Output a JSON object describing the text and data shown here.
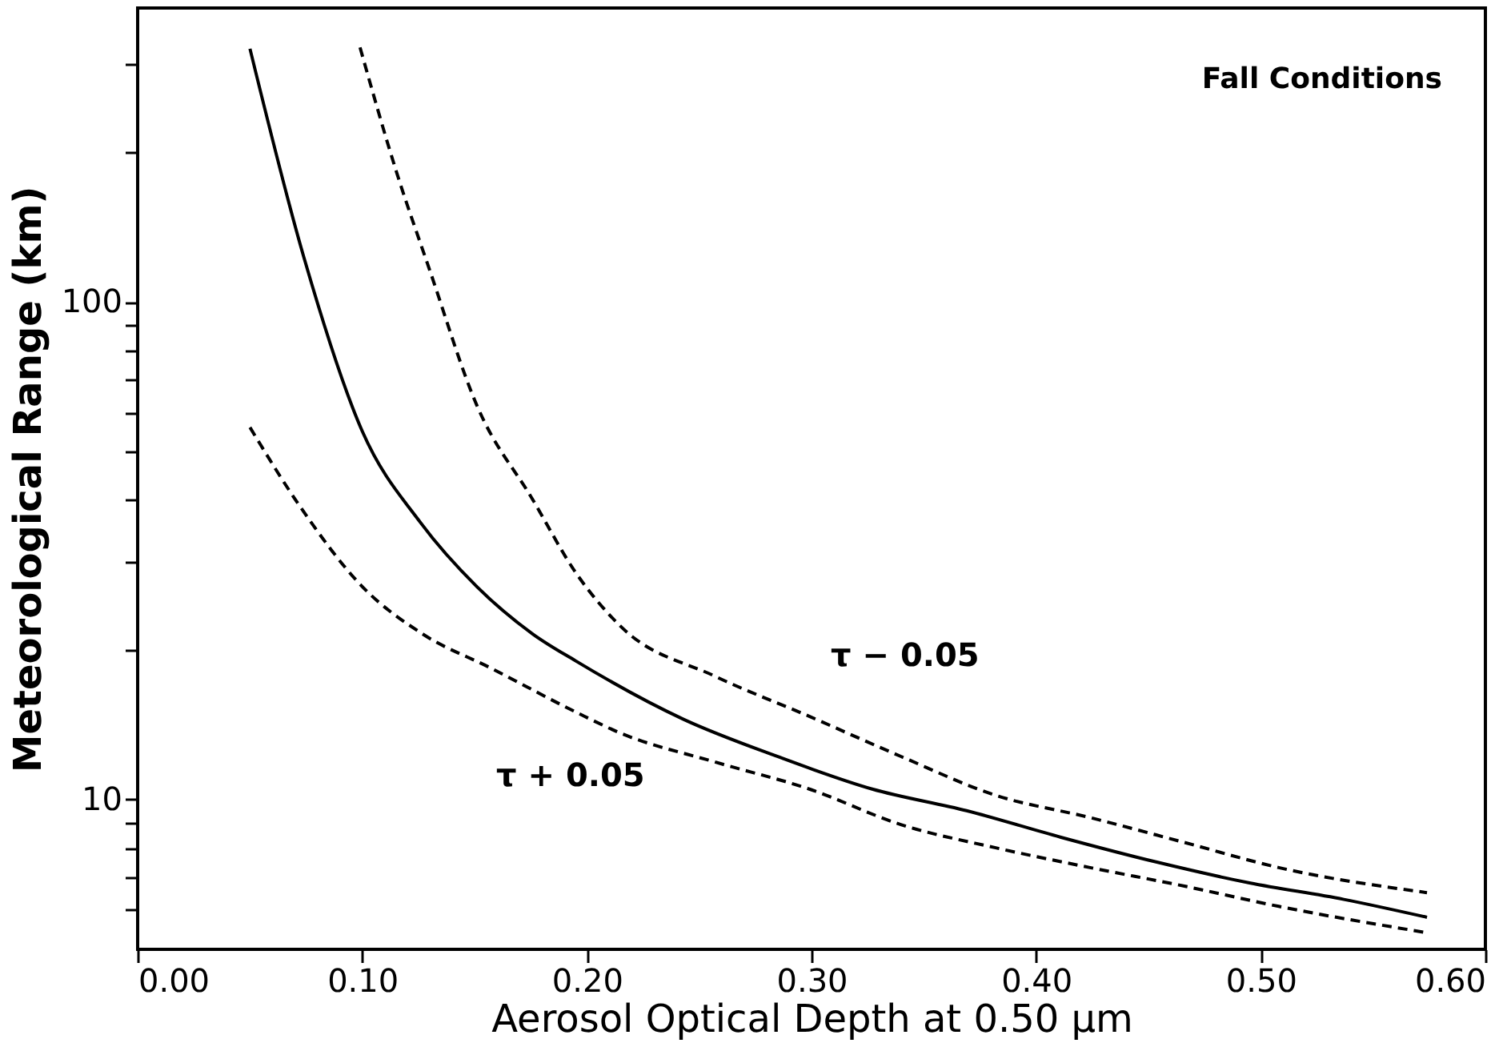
{
  "chart_data": {
    "type": "line",
    "xlabel": "Aerosol Optical Depth at 0.50 µm",
    "ylabel": "Meteorological Range (km)",
    "xlim": [
      0,
      0.6
    ],
    "xticks": [
      {
        "value": 0,
        "label": "0.00"
      },
      {
        "value": 0.1,
        "label": "0.10"
      },
      {
        "value": 0.2,
        "label": "0.20"
      },
      {
        "value": 0.3,
        "label": "0.30"
      },
      {
        "value": 0.4,
        "label": "0.40"
      },
      {
        "value": 0.5,
        "label": "0.50"
      },
      {
        "value": 0.6,
        "label": "0.60"
      }
    ],
    "ylim": [
      5,
      390
    ],
    "log": true,
    "yticks": [
      {
        "value": 6,
        "label": null
      },
      {
        "value": 7,
        "label": null
      },
      {
        "value": 8,
        "label": null
      },
      {
        "value": 9,
        "label": null
      },
      10,
      {
        "value": 20,
        "label": null
      },
      {
        "value": 30,
        "label": null
      },
      {
        "value": 40,
        "label": null
      },
      {
        "value": 50,
        "label": null
      },
      {
        "value": 60,
        "label": null
      },
      {
        "value": 70,
        "label": null
      },
      {
        "value": 80,
        "label": null
      },
      {
        "value": 90,
        "label": null
      },
      100,
      {
        "value": 200,
        "label": null
      },
      {
        "value": 300,
        "label": null
      }
    ],
    "grid": false,
    "marker": "none",
    "series": [
      {
        "color": "#000000",
        "line_style": "solid",
        "x": [
          0.05,
          0.074,
          0.1,
          0.126,
          0.151,
          0.176,
          0.195,
          0.243,
          0.285,
          0.327,
          0.369,
          0.411,
          0.453,
          0.495,
          0.537,
          0.574
        ],
        "values": [
          323,
          123,
          55,
          36,
          26.8,
          21.5,
          19,
          14.5,
          12.2,
          10.5,
          9.5,
          8.4,
          7.5,
          6.8,
          6.3,
          5.8
        ]
      },
      {
        "color": "#000000",
        "line_style": "dashed",
        "x": [
          0.099,
          0.115,
          0.13,
          0.151,
          0.176,
          0.195,
          0.215,
          0.257,
          0.299,
          0.34,
          0.382,
          0.424,
          0.466,
          0.508,
          0.574
        ],
        "values": [
          325,
          184,
          116,
          62,
          40,
          28.6,
          22.3,
          17.7,
          14.7,
          12.2,
          10.2,
          9.2,
          8.2,
          7.3,
          6.5
        ]
      },
      {
        "color": "#000000",
        "line_style": "dashed",
        "x": [
          0.05,
          0.072,
          0.1,
          0.127,
          0.157,
          0.195,
          0.215,
          0.257,
          0.299,
          0.34,
          0.382,
          0.424,
          0.466,
          0.508,
          0.574
        ],
        "values": [
          56,
          39,
          26.8,
          21.5,
          18.4,
          15,
          13.6,
          11.9,
          10.5,
          8.9,
          8.0,
          7.3,
          6.7,
          6.1,
          5.4
        ]
      }
    ],
    "annotations": [
      "Fall Conditions",
      "τ − 0.05",
      "τ + 0.05"
    ]
  }
}
